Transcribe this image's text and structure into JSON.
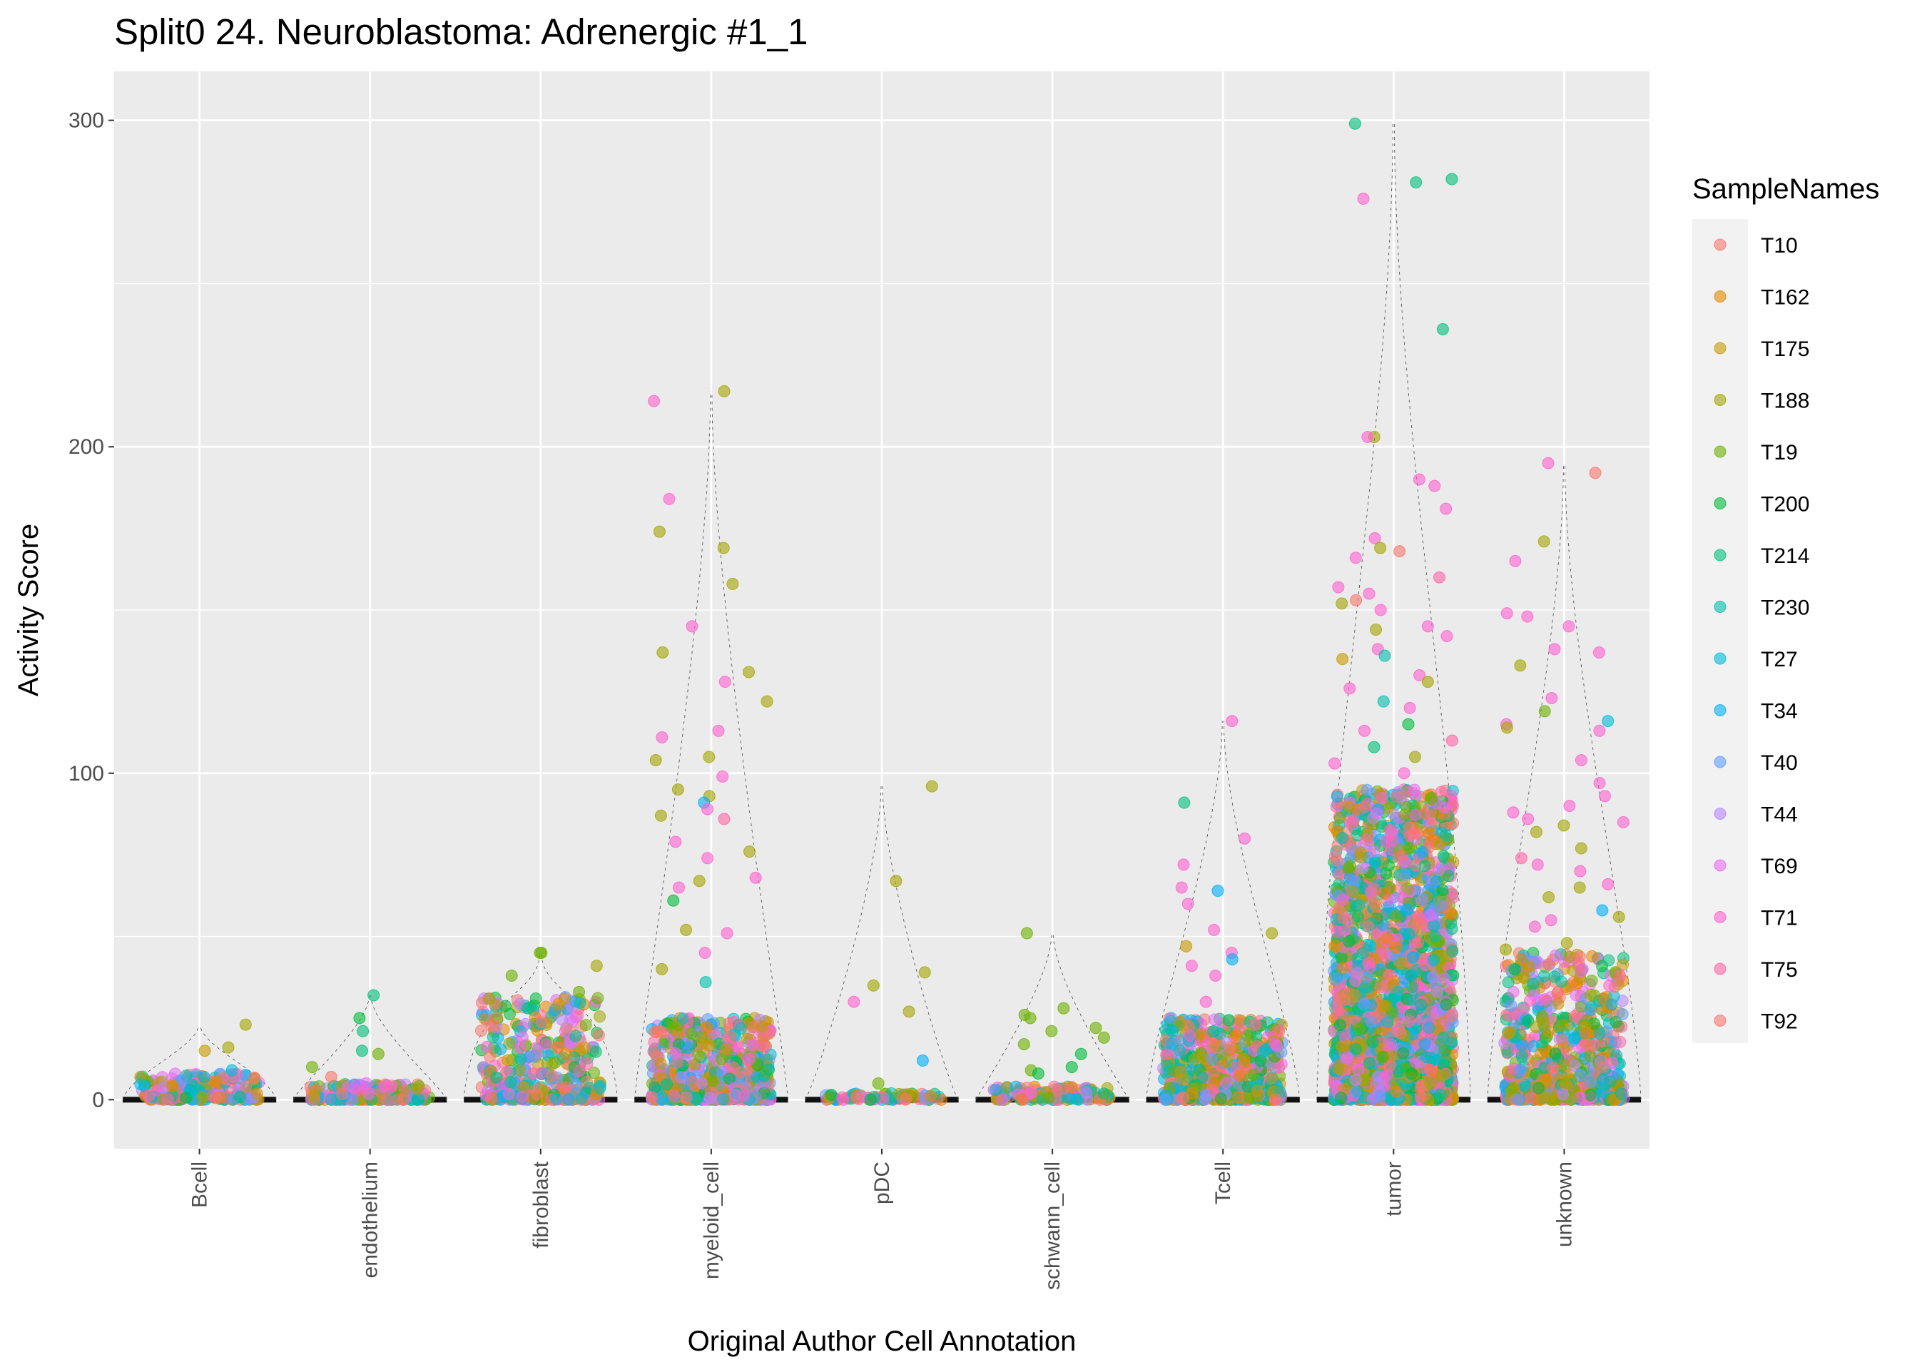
{
  "chart_data": {
    "type": "scatter",
    "subtype": "jittered strip plot with violin outlines",
    "title": "Split0 24. Neuroblastoma: Adrenergic #1_1",
    "xlabel": "Original Author Cell Annotation",
    "ylabel": "Activity Score",
    "categories": [
      "Bcell",
      "endothelium",
      "fibroblast",
      "myeloid_cell",
      "pDC",
      "schwann_cell",
      "Tcell",
      "tumor",
      "unknown"
    ],
    "y_ticks": [
      0,
      100,
      200,
      300
    ],
    "y_tick_labels": [
      "0",
      "100",
      "200",
      "300"
    ],
    "ylim": [
      -15,
      315
    ],
    "grid": true,
    "legend": {
      "title": "SampleNames",
      "placement": "right",
      "entries": [
        "T10",
        "T162",
        "T175",
        "T188",
        "T19",
        "T200",
        "T214",
        "T230",
        "T27",
        "T34",
        "T40",
        "T44",
        "T69",
        "T71",
        "T75",
        "T92"
      ],
      "colors": [
        "#F8766D",
        "#E58700",
        "#C99800",
        "#A3A500",
        "#6BB100",
        "#00BA38",
        "#00BF7D",
        "#00C0AF",
        "#00BCD8",
        "#00B0F6",
        "#619CFF",
        "#B983FF",
        "#E76BF3",
        "#FD61D1",
        "#FF67A4",
        "#F8766D"
      ]
    },
    "groups": [
      {
        "category": "Bcell",
        "max": 23,
        "bulk_max": 8,
        "n": 220,
        "highlights": [
          {
            "y": 23,
            "s": "T188"
          },
          {
            "y": 16,
            "s": "T188"
          },
          {
            "y": 15,
            "s": "T175"
          },
          {
            "y": 9,
            "s": "T27"
          },
          {
            "y": 7,
            "s": "T34"
          }
        ]
      },
      {
        "category": "endothelium",
        "max": 32,
        "bulk_max": 5,
        "n": 200,
        "highlights": [
          {
            "y": 32,
            "s": "T214"
          },
          {
            "y": 25,
            "s": "T200"
          },
          {
            "y": 21,
            "s": "T214"
          },
          {
            "y": 15,
            "s": "T214"
          },
          {
            "y": 14,
            "s": "T19"
          },
          {
            "y": 10,
            "s": "T19"
          },
          {
            "y": 7,
            "s": "T10"
          },
          {
            "y": 5,
            "s": "T69"
          }
        ]
      },
      {
        "category": "fibroblast",
        "max": 45,
        "bulk_max": 32,
        "n": 380,
        "highlights": [
          {
            "y": 45,
            "s": "T19"
          },
          {
            "y": 45,
            "s": "T19"
          },
          {
            "y": 41,
            "s": "T188"
          },
          {
            "y": 38,
            "s": "T19"
          },
          {
            "y": 33,
            "s": "T19"
          },
          {
            "y": 31,
            "s": "T188"
          },
          {
            "y": 28,
            "s": "T214"
          }
        ]
      },
      {
        "category": "myeloid_cell",
        "max": 217,
        "bulk_max": 25,
        "n": 650,
        "highlights": [
          {
            "y": 217,
            "s": "T188"
          },
          {
            "y": 214,
            "s": "T71"
          },
          {
            "y": 184,
            "s": "T71"
          },
          {
            "y": 174,
            "s": "T188"
          },
          {
            "y": 169,
            "s": "T188"
          },
          {
            "y": 158,
            "s": "T188"
          },
          {
            "y": 145,
            "s": "T71"
          },
          {
            "y": 137,
            "s": "T188"
          },
          {
            "y": 131,
            "s": "T188"
          },
          {
            "y": 128,
            "s": "T71"
          },
          {
            "y": 122,
            "s": "T188"
          },
          {
            "y": 113,
            "s": "T71"
          },
          {
            "y": 111,
            "s": "T71"
          },
          {
            "y": 105,
            "s": "T188"
          },
          {
            "y": 104,
            "s": "T188"
          },
          {
            "y": 99,
            "s": "T71"
          },
          {
            "y": 95,
            "s": "T188"
          },
          {
            "y": 93,
            "s": "T188"
          },
          {
            "y": 91,
            "s": "T34"
          },
          {
            "y": 89,
            "s": "T71"
          },
          {
            "y": 87,
            "s": "T188"
          },
          {
            "y": 86,
            "s": "T75"
          },
          {
            "y": 79,
            "s": "T71"
          },
          {
            "y": 76,
            "s": "T188"
          },
          {
            "y": 74,
            "s": "T71"
          },
          {
            "y": 68,
            "s": "T71"
          },
          {
            "y": 67,
            "s": "T188"
          },
          {
            "y": 65,
            "s": "T71"
          },
          {
            "y": 61,
            "s": "T200"
          },
          {
            "y": 52,
            "s": "T188"
          },
          {
            "y": 51,
            "s": "T71"
          },
          {
            "y": 45,
            "s": "T71"
          },
          {
            "y": 40,
            "s": "T188"
          },
          {
            "y": 36,
            "s": "T230"
          }
        ]
      },
      {
        "category": "pDC",
        "max": 96,
        "bulk_max": 2,
        "n": 80,
        "highlights": [
          {
            "y": 96,
            "s": "T188"
          },
          {
            "y": 67,
            "s": "T188"
          },
          {
            "y": 39,
            "s": "T188"
          },
          {
            "y": 35,
            "s": "T188"
          },
          {
            "y": 30,
            "s": "T71"
          },
          {
            "y": 27,
            "s": "T188"
          },
          {
            "y": 12,
            "s": "T34"
          },
          {
            "y": 5,
            "s": "T19"
          }
        ]
      },
      {
        "category": "schwann_cell",
        "max": 51,
        "bulk_max": 4,
        "n": 140,
        "highlights": [
          {
            "y": 51,
            "s": "T19"
          },
          {
            "y": 28,
            "s": "T19"
          },
          {
            "y": 26,
            "s": "T19"
          },
          {
            "y": 25,
            "s": "T19"
          },
          {
            "y": 22,
            "s": "T19"
          },
          {
            "y": 21,
            "s": "T19"
          },
          {
            "y": 19,
            "s": "T19"
          },
          {
            "y": 17,
            "s": "T19"
          },
          {
            "y": 14,
            "s": "T200"
          },
          {
            "y": 10,
            "s": "T200"
          },
          {
            "y": 9,
            "s": "T19"
          },
          {
            "y": 8,
            "s": "T200"
          }
        ]
      },
      {
        "category": "Tcell",
        "max": 116,
        "bulk_max": 25,
        "n": 700,
        "highlights": [
          {
            "y": 116,
            "s": "T71"
          },
          {
            "y": 91,
            "s": "T214"
          },
          {
            "y": 80,
            "s": "T71"
          },
          {
            "y": 72,
            "s": "T71"
          },
          {
            "y": 65,
            "s": "T71"
          },
          {
            "y": 64,
            "s": "T34"
          },
          {
            "y": 60,
            "s": "T71"
          },
          {
            "y": 52,
            "s": "T71"
          },
          {
            "y": 51,
            "s": "T188"
          },
          {
            "y": 47,
            "s": "T175"
          },
          {
            "y": 45,
            "s": "T71"
          },
          {
            "y": 43,
            "s": "T34"
          },
          {
            "y": 41,
            "s": "T71"
          },
          {
            "y": 38,
            "s": "T71"
          },
          {
            "y": 30,
            "s": "T71"
          },
          {
            "y": 25,
            "s": "T40"
          },
          {
            "y": 23,
            "s": "T188"
          },
          {
            "y": 21,
            "s": "T27"
          }
        ]
      },
      {
        "category": "tumor",
        "max": 299,
        "bulk_max": 95,
        "n": 2600,
        "highlights": [
          {
            "y": 299,
            "s": "T214"
          },
          {
            "y": 282,
            "s": "T214"
          },
          {
            "y": 281,
            "s": "T214"
          },
          {
            "y": 276,
            "s": "T71"
          },
          {
            "y": 236,
            "s": "T214"
          },
          {
            "y": 203,
            "s": "T188"
          },
          {
            "y": 203,
            "s": "T71"
          },
          {
            "y": 190,
            "s": "T71"
          },
          {
            "y": 188,
            "s": "T71"
          },
          {
            "y": 181,
            "s": "T71"
          },
          {
            "y": 172,
            "s": "T71"
          },
          {
            "y": 169,
            "s": "T188"
          },
          {
            "y": 168,
            "s": "T10"
          },
          {
            "y": 166,
            "s": "T71"
          },
          {
            "y": 160,
            "s": "T75"
          },
          {
            "y": 157,
            "s": "T71"
          },
          {
            "y": 155,
            "s": "T71"
          },
          {
            "y": 153,
            "s": "T10"
          },
          {
            "y": 152,
            "s": "T188"
          },
          {
            "y": 150,
            "s": "T71"
          },
          {
            "y": 145,
            "s": "T71"
          },
          {
            "y": 144,
            "s": "T188"
          },
          {
            "y": 142,
            "s": "T71"
          },
          {
            "y": 138,
            "s": "T71"
          },
          {
            "y": 136,
            "s": "T230"
          },
          {
            "y": 135,
            "s": "T175"
          },
          {
            "y": 130,
            "s": "T71"
          },
          {
            "y": 128,
            "s": "T188"
          },
          {
            "y": 126,
            "s": "T71"
          },
          {
            "y": 122,
            "s": "T230"
          },
          {
            "y": 120,
            "s": "T71"
          },
          {
            "y": 115,
            "s": "T200"
          },
          {
            "y": 113,
            "s": "T71"
          },
          {
            "y": 110,
            "s": "T75"
          },
          {
            "y": 108,
            "s": "T214"
          },
          {
            "y": 105,
            "s": "T188"
          },
          {
            "y": 103,
            "s": "T71"
          },
          {
            "y": 100,
            "s": "T71"
          }
        ]
      },
      {
        "category": "unknown",
        "max": 195,
        "bulk_max": 45,
        "n": 750,
        "highlights": [
          {
            "y": 195,
            "s": "T71"
          },
          {
            "y": 192,
            "s": "T10"
          },
          {
            "y": 171,
            "s": "T188"
          },
          {
            "y": 165,
            "s": "T71"
          },
          {
            "y": 149,
            "s": "T71"
          },
          {
            "y": 148,
            "s": "T71"
          },
          {
            "y": 145,
            "s": "T71"
          },
          {
            "y": 138,
            "s": "T71"
          },
          {
            "y": 137,
            "s": "T71"
          },
          {
            "y": 133,
            "s": "T188"
          },
          {
            "y": 123,
            "s": "T71"
          },
          {
            "y": 119,
            "s": "T19"
          },
          {
            "y": 116,
            "s": "T27"
          },
          {
            "y": 115,
            "s": "T71"
          },
          {
            "y": 114,
            "s": "T188"
          },
          {
            "y": 113,
            "s": "T71"
          },
          {
            "y": 104,
            "s": "T71"
          },
          {
            "y": 97,
            "s": "T71"
          },
          {
            "y": 93,
            "s": "T71"
          },
          {
            "y": 90,
            "s": "T71"
          },
          {
            "y": 88,
            "s": "T71"
          },
          {
            "y": 86,
            "s": "T71"
          },
          {
            "y": 85,
            "s": "T71"
          },
          {
            "y": 84,
            "s": "T188"
          },
          {
            "y": 82,
            "s": "T188"
          },
          {
            "y": 77,
            "s": "T188"
          },
          {
            "y": 74,
            "s": "T75"
          },
          {
            "y": 72,
            "s": "T71"
          },
          {
            "y": 70,
            "s": "T71"
          },
          {
            "y": 66,
            "s": "T71"
          },
          {
            "y": 65,
            "s": "T188"
          },
          {
            "y": 62,
            "s": "T188"
          },
          {
            "y": 58,
            "s": "T34"
          },
          {
            "y": 56,
            "s": "T188"
          },
          {
            "y": 55,
            "s": "T71"
          },
          {
            "y": 53,
            "s": "T71"
          },
          {
            "y": 48,
            "s": "T188"
          },
          {
            "y": 46,
            "s": "T188"
          }
        ]
      }
    ]
  }
}
